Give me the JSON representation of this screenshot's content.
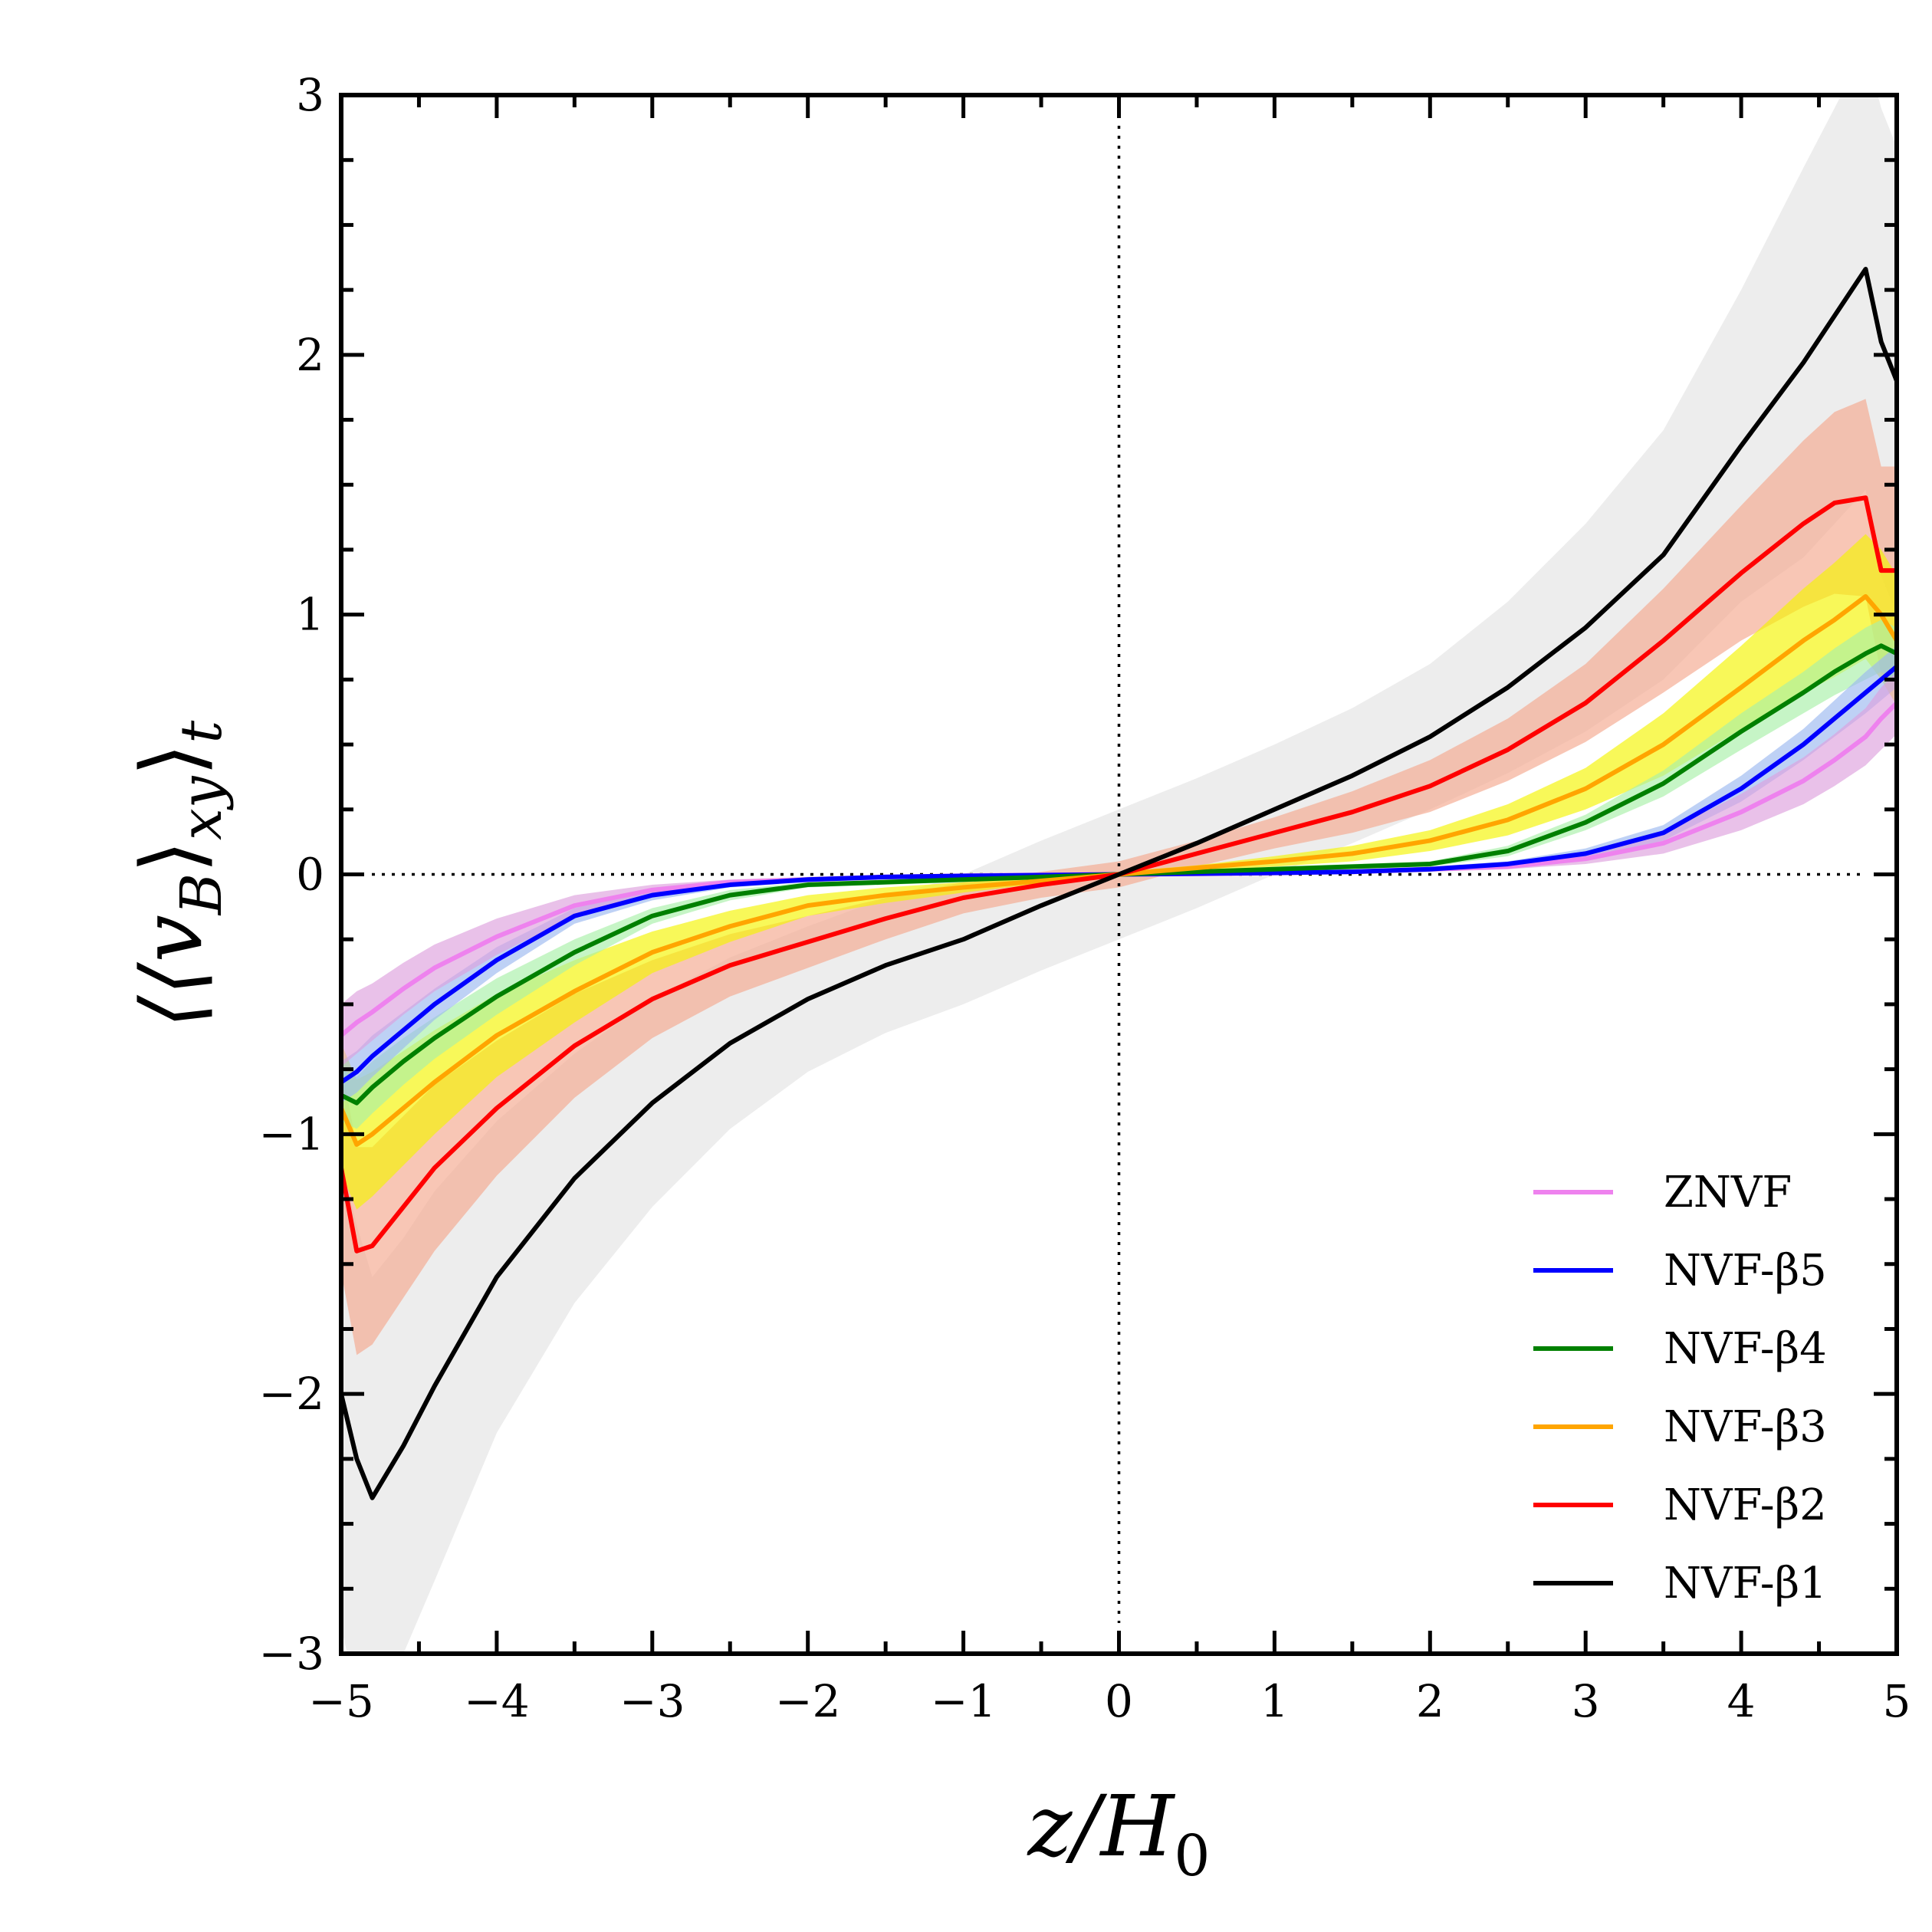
{
  "chart_data": {
    "type": "line",
    "title": "",
    "xlabel": "z/H₀",
    "ylabel": "⟨⟨v_B⟩_xy⟩_t",
    "xlabel_main": "z/H",
    "xlabel_sub": "0",
    "ylabel_main": "⟨⟨v",
    "ylabel_sub1": "B",
    "ylabel_mid": "⟩",
    "ylabel_sub2": "xy",
    "ylabel_end": "⟩",
    "ylabel_sub3": "t",
    "xlim": [
      -5,
      5
    ],
    "ylim": [
      -3,
      3
    ],
    "xticks": [
      -5,
      -4,
      -3,
      -2,
      -1,
      0,
      1,
      2,
      3,
      4,
      5
    ],
    "yticks": [
      -3,
      -2,
      -1,
      0,
      1,
      2,
      3
    ],
    "xtick_labels": [
      "−5",
      "−4",
      "−3",
      "−2",
      "−1",
      "0",
      "1",
      "2",
      "3",
      "4",
      "5"
    ],
    "ytick_labels": [
      "−3",
      "−2",
      "−1",
      "0",
      "1",
      "2",
      "3"
    ],
    "reference_lines": [
      {
        "axis": "x",
        "value": 0,
        "style": "dotted"
      },
      {
        "axis": "y",
        "value": 0,
        "style": "dotted"
      }
    ],
    "legend_position": "lower-right",
    "x": [
      -5.0,
      -4.9,
      -4.8,
      -4.6,
      -4.4,
      -4.0,
      -3.5,
      -3.0,
      -2.5,
      -2.0,
      -1.5,
      -1.0,
      -0.5,
      0.0,
      0.5,
      1.0,
      1.5,
      2.0,
      2.5,
      3.0,
      3.5,
      4.0,
      4.4,
      4.6,
      4.8,
      4.9,
      5.0
    ],
    "series": [
      {
        "name": "ZNVF",
        "legend_label": "ZNVF",
        "color": "#ee82ee",
        "band_color": "#dda0dd",
        "values": [
          -0.62,
          -0.57,
          -0.53,
          -0.44,
          -0.36,
          -0.24,
          -0.12,
          -0.06,
          -0.03,
          -0.02,
          -0.01,
          -0.005,
          -0.002,
          0.0,
          0.002,
          0.005,
          0.01,
          0.02,
          0.03,
          0.06,
          0.12,
          0.24,
          0.36,
          0.44,
          0.53,
          0.6,
          0.66
        ],
        "band_halfwidth": [
          0.12,
          0.12,
          0.11,
          0.1,
          0.09,
          0.07,
          0.04,
          0.02,
          0.01,
          0.01,
          0.01,
          0.005,
          0.005,
          0.005,
          0.005,
          0.005,
          0.01,
          0.01,
          0.01,
          0.02,
          0.04,
          0.07,
          0.09,
          0.1,
          0.11,
          0.12,
          0.12
        ]
      },
      {
        "name": "NVF-β5",
        "legend_label": "NVF-β5",
        "color": "#0000ff",
        "band_color": "#9bb8f0",
        "values": [
          -0.8,
          -0.76,
          -0.7,
          -0.6,
          -0.5,
          -0.33,
          -0.16,
          -0.08,
          -0.04,
          -0.02,
          -0.01,
          -0.006,
          -0.003,
          0.0,
          0.003,
          0.006,
          0.01,
          0.02,
          0.04,
          0.08,
          0.16,
          0.33,
          0.5,
          0.6,
          0.7,
          0.75,
          0.8
        ],
        "band_halfwidth": [
          0.08,
          0.08,
          0.08,
          0.07,
          0.06,
          0.05,
          0.03,
          0.02,
          0.01,
          0.01,
          0.005,
          0.005,
          0.005,
          0.005,
          0.005,
          0.005,
          0.005,
          0.01,
          0.01,
          0.02,
          0.03,
          0.05,
          0.06,
          0.07,
          0.08,
          0.08,
          0.08
        ]
      },
      {
        "name": "NVF-β4",
        "legend_label": "NVF-β4",
        "color": "#008000",
        "band_color": "#a8f0a8",
        "values": [
          -0.85,
          -0.88,
          -0.82,
          -0.72,
          -0.63,
          -0.47,
          -0.3,
          -0.16,
          -0.08,
          -0.04,
          -0.03,
          -0.02,
          -0.01,
          0.0,
          0.01,
          0.02,
          0.03,
          0.04,
          0.09,
          0.2,
          0.35,
          0.55,
          0.7,
          0.78,
          0.85,
          0.88,
          0.85
        ],
        "band_halfwidth": [
          0.1,
          0.1,
          0.1,
          0.09,
          0.08,
          0.07,
          0.05,
          0.03,
          0.02,
          0.01,
          0.01,
          0.01,
          0.005,
          0.005,
          0.005,
          0.01,
          0.01,
          0.01,
          0.02,
          0.03,
          0.05,
          0.07,
          0.08,
          0.09,
          0.1,
          0.1,
          0.1
        ]
      },
      {
        "name": "NVF-β3",
        "legend_label": "NVF-β3",
        "color": "#ffa500",
        "band_color": "#f5f500",
        "values": [
          -0.9,
          -1.04,
          -1.0,
          -0.9,
          -0.8,
          -0.62,
          -0.45,
          -0.3,
          -0.2,
          -0.12,
          -0.08,
          -0.05,
          -0.025,
          0.0,
          0.025,
          0.05,
          0.08,
          0.13,
          0.21,
          0.33,
          0.5,
          0.72,
          0.9,
          0.98,
          1.07,
          1.0,
          0.9
        ],
        "band_halfwidth": [
          0.25,
          0.25,
          0.24,
          0.22,
          0.2,
          0.16,
          0.12,
          0.08,
          0.06,
          0.04,
          0.03,
          0.02,
          0.01,
          0.01,
          0.01,
          0.02,
          0.03,
          0.04,
          0.06,
          0.08,
          0.12,
          0.16,
          0.2,
          0.22,
          0.24,
          0.25,
          0.25
        ]
      },
      {
        "name": "NVF-β2",
        "legend_label": "NVF-β2",
        "color": "#ff0000",
        "band_color": "#f5a88e",
        "values": [
          -1.13,
          -1.45,
          -1.43,
          -1.28,
          -1.13,
          -0.9,
          -0.66,
          -0.48,
          -0.35,
          -0.26,
          -0.17,
          -0.09,
          -0.04,
          0.0,
          0.08,
          0.16,
          0.24,
          0.34,
          0.48,
          0.66,
          0.9,
          1.16,
          1.35,
          1.43,
          1.45,
          1.17,
          1.17
        ],
        "band_halfwidth": [
          0.4,
          0.4,
          0.38,
          0.35,
          0.32,
          0.26,
          0.2,
          0.15,
          0.12,
          0.1,
          0.08,
          0.06,
          0.05,
          0.05,
          0.05,
          0.06,
          0.08,
          0.1,
          0.12,
          0.15,
          0.2,
          0.26,
          0.32,
          0.35,
          0.38,
          0.4,
          0.4
        ]
      },
      {
        "name": "NVF-β1",
        "legend_label": "NVF-β1",
        "color": "#000000",
        "band_color": "#e3e3e3",
        "values": [
          -2.0,
          -2.25,
          -2.4,
          -2.2,
          -1.97,
          -1.55,
          -1.17,
          -0.88,
          -0.65,
          -0.48,
          -0.35,
          -0.25,
          -0.12,
          0.0,
          0.12,
          0.25,
          0.38,
          0.53,
          0.72,
          0.95,
          1.23,
          1.65,
          1.97,
          2.15,
          2.33,
          2.05,
          1.9
        ],
        "band_halfwidth": [
          0.9,
          0.9,
          0.85,
          0.8,
          0.75,
          0.6,
          0.48,
          0.4,
          0.33,
          0.28,
          0.26,
          0.25,
          0.25,
          0.25,
          0.25,
          0.25,
          0.26,
          0.28,
          0.33,
          0.4,
          0.48,
          0.6,
          0.75,
          0.8,
          0.85,
          0.9,
          0.9
        ]
      }
    ]
  }
}
